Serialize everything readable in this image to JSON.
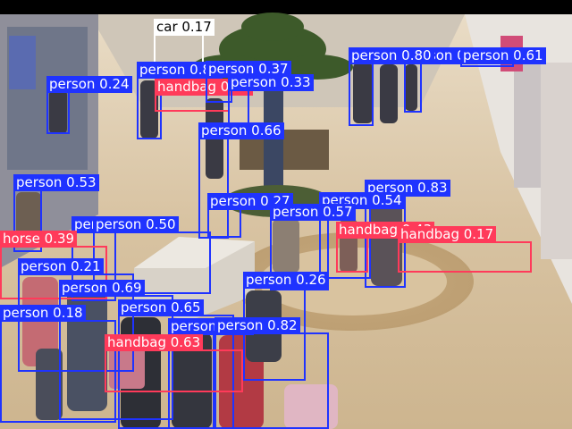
{
  "colors": {
    "person": "#1f33ff",
    "handbag": "#ff3a5a",
    "horse": "#ff3a5a",
    "car": "#ffffff"
  },
  "detections": [
    {
      "cls": "car",
      "label": "car 0.17"
    },
    {
      "cls": "person",
      "label": "person 0.24"
    },
    {
      "cls": "person",
      "label": "person 0.80"
    },
    {
      "cls": "handbag",
      "label": "handbag 0.23"
    },
    {
      "cls": "person",
      "label": "person 0.37"
    },
    {
      "cls": "person",
      "label": "person 0.33"
    },
    {
      "cls": "person",
      "label": "person 0.79"
    },
    {
      "cls": "person",
      "label": "person 0.61"
    },
    {
      "cls": "person",
      "label": "person 0.80"
    },
    {
      "cls": "person",
      "label": "person 0.66"
    },
    {
      "cls": "person",
      "label": "person 0.53"
    },
    {
      "cls": "person",
      "label": "person 0.83"
    },
    {
      "cls": "person",
      "label": "person 0.54"
    },
    {
      "cls": "person",
      "label": "person 0.27"
    },
    {
      "cls": "person",
      "label": "person 0.57"
    },
    {
      "cls": "person",
      "label": "person 0.50"
    },
    {
      "cls": "person",
      "label": "person 0.50"
    },
    {
      "cls": "handbag",
      "label": "handbag 0.43"
    },
    {
      "cls": "handbag",
      "label": "handbag 0.17"
    },
    {
      "cls": "horse",
      "label": "horse 0.39"
    },
    {
      "cls": "person",
      "label": "person 0.21"
    },
    {
      "cls": "person",
      "label": "person 0.26"
    },
    {
      "cls": "person",
      "label": "person 0.69"
    },
    {
      "cls": "person",
      "label": "person 0.65"
    },
    {
      "cls": "person",
      "label": "person 0.18"
    },
    {
      "cls": "person",
      "label": "person 0.82"
    },
    {
      "cls": "person",
      "label": "person 0.82"
    },
    {
      "cls": "handbag",
      "label": "handbag 0.63"
    }
  ]
}
